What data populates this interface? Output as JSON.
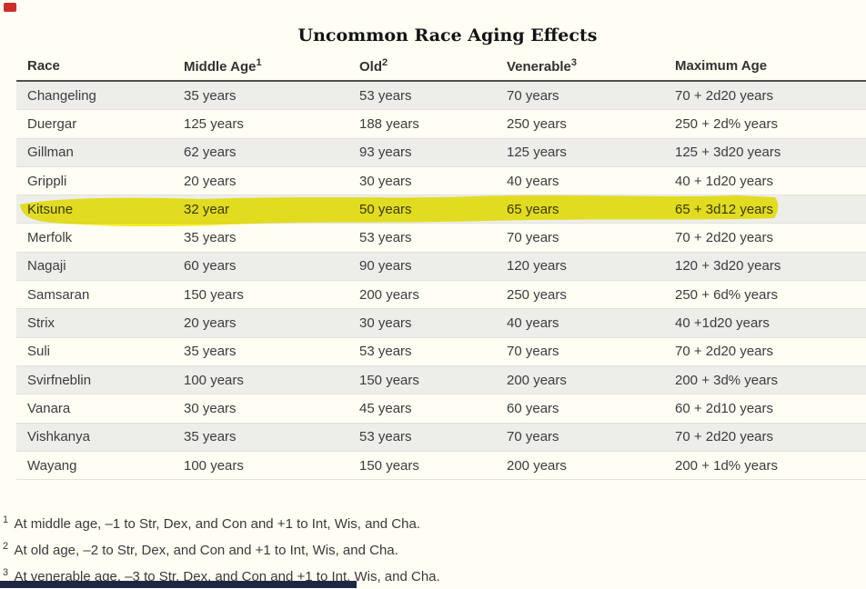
{
  "page": {
    "title": "Uncommon Race Aging Effects"
  },
  "table": {
    "columns": [
      {
        "label": "Race",
        "sup": ""
      },
      {
        "label": "Middle Age",
        "sup": "1"
      },
      {
        "label": "Old",
        "sup": "2"
      },
      {
        "label": "Venerable",
        "sup": "3"
      },
      {
        "label": "Maximum Age",
        "sup": ""
      }
    ],
    "rows": [
      {
        "race": "Changeling",
        "middle_age": "35 years",
        "old": "53 years",
        "venerable": "70 years",
        "maximum_age": "70 + 2d20 years",
        "highlighted": false
      },
      {
        "race": "Duergar",
        "middle_age": "125 years",
        "old": "188 years",
        "venerable": "250 years",
        "maximum_age": "250 + 2d% years",
        "highlighted": false
      },
      {
        "race": "Gillman",
        "middle_age": "62 years",
        "old": "93 years",
        "venerable": "125 years",
        "maximum_age": "125 + 3d20 years",
        "highlighted": false
      },
      {
        "race": "Grippli",
        "middle_age": "20 years",
        "old": "30 years",
        "venerable": "40 years",
        "maximum_age": "40 + 1d20 years",
        "highlighted": false
      },
      {
        "race": "Kitsune",
        "middle_age": "32 year",
        "old": "50 years",
        "venerable": "65 years",
        "maximum_age": "65 + 3d12 years",
        "highlighted": true
      },
      {
        "race": "Merfolk",
        "middle_age": "35 years",
        "old": "53 years",
        "venerable": "70 years",
        "maximum_age": "70 + 2d20 years",
        "highlighted": false
      },
      {
        "race": "Nagaji",
        "middle_age": "60 years",
        "old": "90 years",
        "venerable": "120 years",
        "maximum_age": "120 + 3d20 years",
        "highlighted": false
      },
      {
        "race": "Samsaran",
        "middle_age": "150 years",
        "old": "200 years",
        "venerable": "250 years",
        "maximum_age": "250 + 6d% years",
        "highlighted": false
      },
      {
        "race": "Strix",
        "middle_age": "20 years",
        "old": "30 years",
        "venerable": "40 years",
        "maximum_age": "40 +1d20 years",
        "highlighted": false
      },
      {
        "race": "Suli",
        "middle_age": "35 years",
        "old": "53 years",
        "venerable": "70 years",
        "maximum_age": "70 + 2d20 years",
        "highlighted": false
      },
      {
        "race": "Svirfneblin",
        "middle_age": "100 years",
        "old": "150 years",
        "venerable": "200 years",
        "maximum_age": "200 + 3d% years",
        "highlighted": false
      },
      {
        "race": "Vanara",
        "middle_age": "30 years",
        "old": "45 years",
        "venerable": "60 years",
        "maximum_age": "60 + 2d10 years",
        "highlighted": false
      },
      {
        "race": "Vishkanya",
        "middle_age": "35 years",
        "old": "53 years",
        "venerable": "70 years",
        "maximum_age": "70 + 2d20 years",
        "highlighted": false
      },
      {
        "race": "Wayang",
        "middle_age": "100 years",
        "old": "150 years",
        "venerable": "200 years",
        "maximum_age": "200 + 1d% years",
        "highlighted": false
      }
    ]
  },
  "footnotes": [
    {
      "sup": "1",
      "text": "At middle age, –1 to Str, Dex, and Con and +1 to Int, Wis, and Cha."
    },
    {
      "sup": "2",
      "text": "At old age, –2 to Str, Dex, and Con and +1 to Int, Wis, and Cha."
    },
    {
      "sup": "3",
      "text": "At venerable age, –3 to Str, Dex, and Con and +1 to Int, Wis, and Cha."
    }
  ],
  "decorations": {
    "highlight_color": "#f2ec10",
    "corner_marker_color": "#cb2f27",
    "bottom_bar_color": "#1e2742"
  }
}
